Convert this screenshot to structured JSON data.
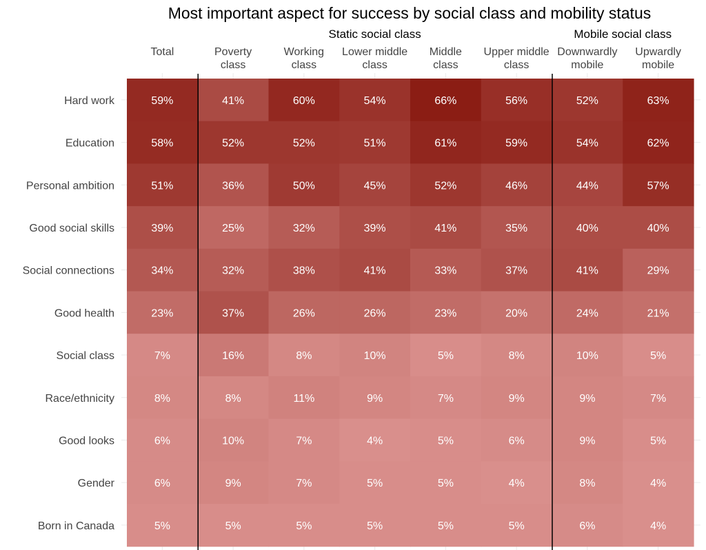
{
  "chart_data": {
    "type": "heatmap",
    "title": "Most important aspect for success by social class and mobility status",
    "column_groups": [
      {
        "label": "Static social class",
        "columns": [
          "Poverty class",
          "Working class",
          "Lower middle class",
          "Middle class",
          "Upper middle class"
        ]
      },
      {
        "label": "Mobile social class",
        "columns": [
          "Downwardly mobile",
          "Upwardly mobile"
        ]
      }
    ],
    "columns": [
      {
        "key": "total",
        "label_lines": [
          "Total"
        ]
      },
      {
        "key": "poverty",
        "label_lines": [
          "Poverty",
          "class"
        ]
      },
      {
        "key": "working",
        "label_lines": [
          "Working",
          "class"
        ]
      },
      {
        "key": "lower_middle",
        "label_lines": [
          "Lower middle",
          "class"
        ]
      },
      {
        "key": "middle",
        "label_lines": [
          "Middle",
          "class"
        ]
      },
      {
        "key": "upper_middle",
        "label_lines": [
          "Upper middle",
          "class"
        ]
      },
      {
        "key": "downwardly",
        "label_lines": [
          "Downwardly",
          "mobile"
        ]
      },
      {
        "key": "upwardly",
        "label_lines": [
          "Upwardly",
          "mobile"
        ]
      }
    ],
    "rows": [
      {
        "label": "Hard work",
        "values": [
          59,
          41,
          60,
          54,
          66,
          56,
          52,
          63
        ]
      },
      {
        "label": "Education",
        "values": [
          58,
          52,
          52,
          51,
          61,
          59,
          54,
          62
        ]
      },
      {
        "label": "Personal ambition",
        "values": [
          51,
          36,
          50,
          45,
          52,
          46,
          44,
          57
        ]
      },
      {
        "label": "Good social skills",
        "values": [
          39,
          25,
          32,
          39,
          41,
          35,
          40,
          40
        ]
      },
      {
        "label": "Social connections",
        "values": [
          34,
          32,
          38,
          41,
          33,
          37,
          41,
          29
        ]
      },
      {
        "label": "Good health",
        "values": [
          23,
          37,
          26,
          26,
          23,
          20,
          24,
          21
        ]
      },
      {
        "label": "Social class",
        "values": [
          7,
          16,
          8,
          10,
          5,
          8,
          10,
          5
        ]
      },
      {
        "label": "Race/ethnicity",
        "values": [
          8,
          8,
          11,
          9,
          7,
          9,
          9,
          7
        ]
      },
      {
        "label": "Good looks",
        "values": [
          6,
          10,
          7,
          4,
          5,
          6,
          9,
          5
        ]
      },
      {
        "label": "Gender",
        "values": [
          6,
          9,
          7,
          5,
          5,
          4,
          8,
          4
        ]
      },
      {
        "label": "Born in Canada",
        "values": [
          5,
          5,
          5,
          5,
          5,
          5,
          6,
          4
        ]
      }
    ],
    "value_suffix": "%",
    "value_range": [
      4,
      66
    ],
    "color_low": "#d98f8c",
    "color_high": "#8b1d14",
    "text_color": "#ffffff",
    "grid": true,
    "legend": "none"
  }
}
